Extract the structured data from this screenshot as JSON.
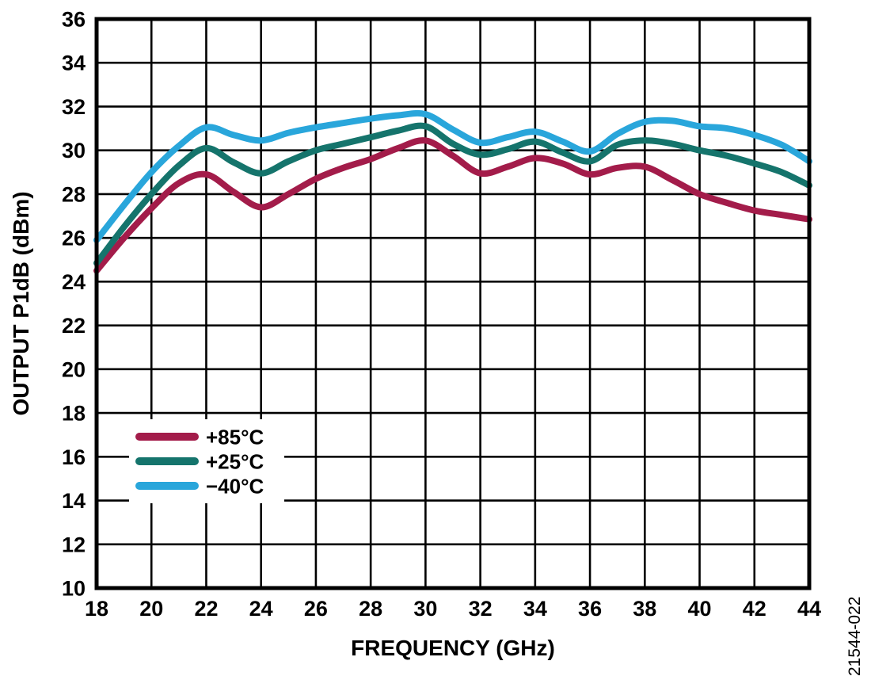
{
  "figure": {
    "watermark": "21544-022"
  },
  "chart_data": {
    "type": "line",
    "title": "",
    "xlabel": "FREQUENCY (GHz)",
    "ylabel": "OUTPUT P1dB (dBm)",
    "xlim": [
      18,
      44
    ],
    "ylim": [
      10,
      36
    ],
    "x_ticks": [
      18,
      20,
      22,
      24,
      26,
      28,
      30,
      32,
      34,
      36,
      38,
      40,
      42,
      44
    ],
    "y_ticks": [
      36,
      34,
      32,
      30,
      28,
      26,
      24,
      22,
      20,
      18,
      16,
      14,
      12,
      10
    ],
    "grid": true,
    "grid_color": "#000000",
    "legend_position": "inside-left-middle",
    "x": [
      18,
      19,
      20,
      21,
      22,
      23,
      24,
      25,
      26,
      27,
      28,
      29,
      30,
      31,
      32,
      33,
      34,
      35,
      36,
      37,
      38,
      39,
      40,
      41,
      42,
      43,
      44
    ],
    "series": [
      {
        "name": "+85°C",
        "color": "#A31C4A",
        "values": [
          24.5,
          26.0,
          27.35,
          28.5,
          28.9,
          28.1,
          27.4,
          28.0,
          28.7,
          29.2,
          29.6,
          30.1,
          30.45,
          29.75,
          28.95,
          29.25,
          29.65,
          29.4,
          28.9,
          29.2,
          29.25,
          28.65,
          28.0,
          27.6,
          27.25,
          27.05,
          26.85
        ]
      },
      {
        "name": "+25°C",
        "color": "#15746C",
        "values": [
          24.85,
          26.5,
          28.0,
          29.3,
          30.1,
          29.45,
          28.95,
          29.5,
          30.0,
          30.3,
          30.6,
          30.9,
          31.1,
          30.3,
          29.8,
          30.05,
          30.4,
          29.9,
          29.5,
          30.25,
          30.45,
          30.3,
          30.0,
          29.75,
          29.4,
          29.0,
          28.4
        ]
      },
      {
        "name": "−40°C",
        "color": "#29A6DB",
        "values": [
          25.9,
          27.5,
          29.0,
          30.2,
          31.05,
          30.7,
          30.45,
          30.8,
          31.05,
          31.25,
          31.45,
          31.6,
          31.65,
          30.95,
          30.35,
          30.6,
          30.85,
          30.4,
          29.95,
          30.75,
          31.3,
          31.35,
          31.1,
          31.0,
          30.7,
          30.25,
          29.5
        ]
      }
    ]
  }
}
